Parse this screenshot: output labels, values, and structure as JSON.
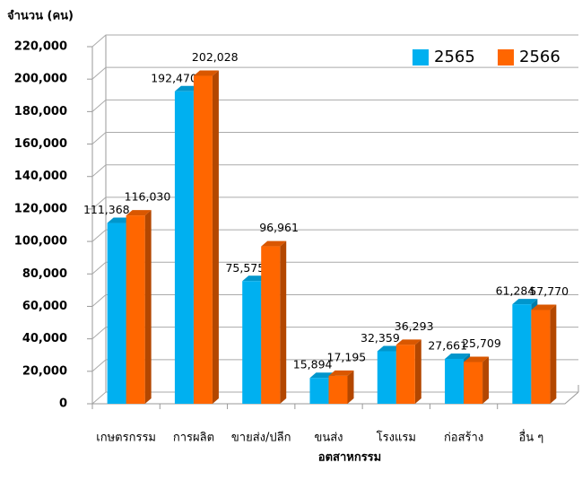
{
  "chart_data": {
    "type": "bar3d",
    "y_label": "จำนวน (คน)",
    "x_label": "อตสาหกรรม",
    "categories": [
      "เกษตรกรรม",
      "การผลิต",
      "ขายส่ง/ปลีก",
      "ขนส่ง",
      "โรงแรม",
      "ก่อสร้าง",
      "อื่น ๆ"
    ],
    "series": [
      {
        "name": "2565",
        "color": "#00b0f0",
        "values": [
          111368,
          192470,
          75575,
          15894,
          32359,
          27661,
          61284
        ],
        "value_labels": [
          "111,368",
          "192,470",
          "75,575",
          "15,894",
          "32,359",
          "27,661",
          "61,284"
        ]
      },
      {
        "name": "2566",
        "color": "#ff6600",
        "values": [
          116030,
          202028,
          96961,
          17195,
          36293,
          25709,
          57770
        ],
        "value_labels": [
          "116,030",
          "202,028",
          "96,961",
          "17,195",
          "36,293",
          "25,709",
          "57,770"
        ]
      }
    ],
    "ylim": [
      0,
      220000
    ],
    "yticks": [
      0,
      {
        "value": 20000,
        "label": "20,000"
      },
      {
        "value": 40000,
        "label": "40,000"
      },
      {
        "value": 60000,
        "label": "60,000"
      },
      {
        "value": 80000,
        "label": "80,000"
      },
      {
        "value": 100000,
        "label": "100,000"
      },
      {
        "value": 120000,
        "label": "120,000"
      },
      {
        "value": 140000,
        "label": "140,000"
      },
      {
        "value": 160000,
        "label": "160,000"
      },
      {
        "value": 180000,
        "label": "180,000"
      },
      {
        "value": 200000,
        "label": "200,000"
      },
      {
        "value": 220000,
        "label": "220,000"
      }
    ],
    "grid": true,
    "legend": "top-right"
  }
}
